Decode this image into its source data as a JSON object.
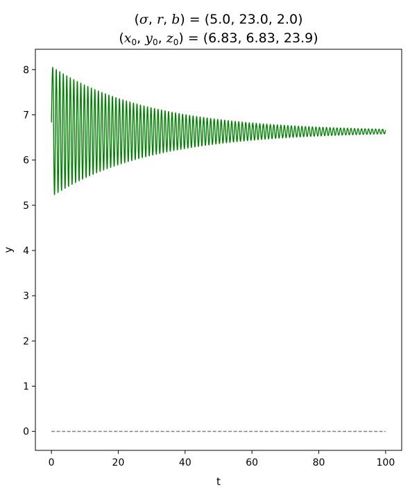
{
  "chart_data": {
    "type": "line",
    "title_line1": {
      "open": "(",
      "sigma": "σ",
      "c1": ", ",
      "r": "r",
      "c2": ", ",
      "b": "b",
      "rest": ") = (5.0, 23.0, 2.0)"
    },
    "title_line2": {
      "open": "(",
      "x": "x",
      "x_sub": "0",
      "c1": ", ",
      "y": "y",
      "y_sub": "0",
      "c2": ", ",
      "z": "z",
      "z_sub": "0",
      "rest": ") = (6.83, 6.83, 23.9)"
    },
    "xlabel": "t",
    "ylabel": "y",
    "xlim": [
      -4.8,
      104.8
    ],
    "ylim": [
      -0.42,
      8.45
    ],
    "xticks": [
      "0",
      "20",
      "40",
      "60",
      "80",
      "100"
    ],
    "yticks": [
      "0",
      "1",
      "2",
      "3",
      "4",
      "5",
      "6",
      "7",
      "8"
    ],
    "grid": false,
    "series": [
      {
        "type": "damped_oscillation",
        "color": "#008000",
        "t_start": 0,
        "t_end": 100,
        "y_start": 6.83,
        "y_center": 6.63,
        "first_max": 8.05,
        "first_min": 5.27,
        "end_amplitude": 0.05,
        "period": 1.05
      },
      {
        "type": "hline",
        "color": "#808080",
        "dash": true,
        "y": 0,
        "x": [
          0,
          100
        ]
      }
    ]
  }
}
